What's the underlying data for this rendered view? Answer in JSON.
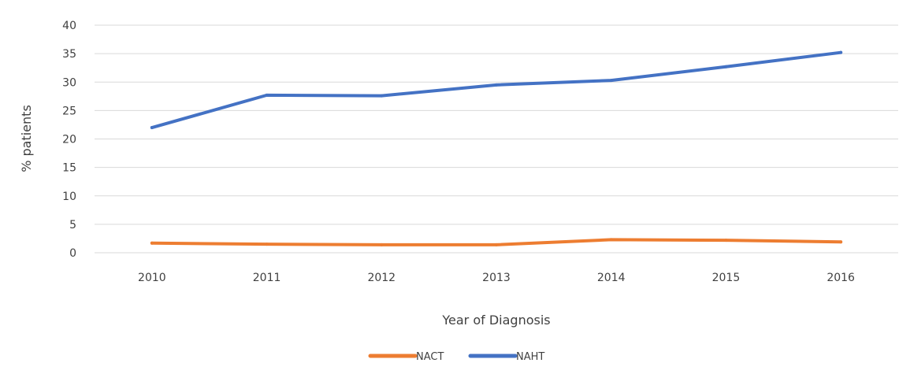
{
  "chart_data": {
    "type": "line",
    "categories": [
      "2010",
      "2011",
      "2012",
      "2013",
      "2014",
      "2015",
      "2016"
    ],
    "series": [
      {
        "name": "NACT",
        "color": "#ed7d31",
        "values": [
          1.7,
          1.5,
          1.4,
          1.4,
          2.3,
          2.2,
          1.9
        ]
      },
      {
        "name": "NAHT",
        "color": "#4472c4",
        "values": [
          22.0,
          27.7,
          27.6,
          29.5,
          30.3,
          32.7,
          35.2
        ]
      }
    ],
    "xlabel": "Year of Diagnosis",
    "ylabel": "% patients",
    "ylim": [
      0,
      40
    ],
    "yticks": [
      "0",
      "5",
      "10",
      "15",
      "20",
      "25",
      "30",
      "35",
      "40"
    ],
    "grid": true,
    "legend_position": "bottom"
  }
}
